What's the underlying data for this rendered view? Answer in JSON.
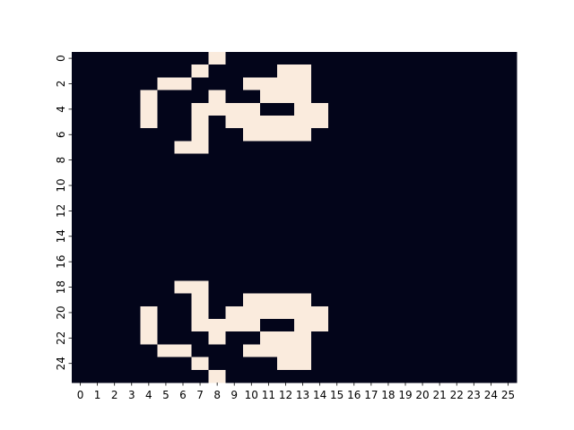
{
  "chart_data": {
    "type": "heatmap",
    "title": "",
    "xlabel": "",
    "ylabel": "",
    "x_tick_labels": [
      "0",
      "1",
      "2",
      "3",
      "4",
      "5",
      "6",
      "7",
      "8",
      "9",
      "10",
      "11",
      "12",
      "13",
      "14",
      "15",
      "16",
      "17",
      "18",
      "19",
      "20",
      "21",
      "22",
      "23",
      "24",
      "25"
    ],
    "y_tick_labels": [
      "0",
      "2",
      "4",
      "6",
      "8",
      "10",
      "12",
      "14",
      "16",
      "18",
      "20",
      "22",
      "24"
    ],
    "y_tick_values": [
      0,
      2,
      4,
      6,
      8,
      10,
      12,
      14,
      16,
      18,
      20,
      22,
      24
    ],
    "colorbar": false,
    "colors": {
      "off": "#03051a",
      "on": "#faebdd"
    },
    "values": [
      [
        0,
        0,
        0,
        0,
        0,
        0,
        0,
        0,
        1,
        0,
        0,
        0,
        0,
        0,
        0,
        0,
        0,
        0,
        0,
        0,
        0,
        0,
        0,
        0,
        0,
        0
      ],
      [
        0,
        0,
        0,
        0,
        0,
        0,
        0,
        1,
        0,
        0,
        0,
        0,
        1,
        1,
        0,
        0,
        0,
        0,
        0,
        0,
        0,
        0,
        0,
        0,
        0,
        0
      ],
      [
        0,
        0,
        0,
        0,
        0,
        1,
        1,
        0,
        0,
        0,
        1,
        1,
        1,
        1,
        0,
        0,
        0,
        0,
        0,
        0,
        0,
        0,
        0,
        0,
        0,
        0
      ],
      [
        0,
        0,
        0,
        0,
        1,
        0,
        0,
        0,
        1,
        0,
        0,
        1,
        1,
        1,
        0,
        0,
        0,
        0,
        0,
        0,
        0,
        0,
        0,
        0,
        0,
        0
      ],
      [
        0,
        0,
        0,
        0,
        1,
        0,
        0,
        1,
        1,
        1,
        1,
        0,
        0,
        1,
        1,
        0,
        0,
        0,
        0,
        0,
        0,
        0,
        0,
        0,
        0,
        0
      ],
      [
        0,
        0,
        0,
        0,
        1,
        0,
        0,
        1,
        0,
        1,
        1,
        1,
        1,
        1,
        1,
        0,
        0,
        0,
        0,
        0,
        0,
        0,
        0,
        0,
        0,
        0
      ],
      [
        0,
        0,
        0,
        0,
        0,
        0,
        0,
        1,
        0,
        0,
        1,
        1,
        1,
        1,
        0,
        0,
        0,
        0,
        0,
        0,
        0,
        0,
        0,
        0,
        0,
        0
      ],
      [
        0,
        0,
        0,
        0,
        0,
        0,
        1,
        1,
        0,
        0,
        0,
        0,
        0,
        0,
        0,
        0,
        0,
        0,
        0,
        0,
        0,
        0,
        0,
        0,
        0,
        0
      ],
      [
        0,
        0,
        0,
        0,
        0,
        0,
        0,
        0,
        0,
        0,
        0,
        0,
        0,
        0,
        0,
        0,
        0,
        0,
        0,
        0,
        0,
        0,
        0,
        0,
        0,
        0
      ],
      [
        0,
        0,
        0,
        0,
        0,
        0,
        0,
        0,
        0,
        0,
        0,
        0,
        0,
        0,
        0,
        0,
        0,
        0,
        0,
        0,
        0,
        0,
        0,
        0,
        0,
        0
      ],
      [
        0,
        0,
        0,
        0,
        0,
        0,
        0,
        0,
        0,
        0,
        0,
        0,
        0,
        0,
        0,
        0,
        0,
        0,
        0,
        0,
        0,
        0,
        0,
        0,
        0,
        0
      ],
      [
        0,
        0,
        0,
        0,
        0,
        0,
        0,
        0,
        0,
        0,
        0,
        0,
        0,
        0,
        0,
        0,
        0,
        0,
        0,
        0,
        0,
        0,
        0,
        0,
        0,
        0
      ],
      [
        0,
        0,
        0,
        0,
        0,
        0,
        0,
        0,
        0,
        0,
        0,
        0,
        0,
        0,
        0,
        0,
        0,
        0,
        0,
        0,
        0,
        0,
        0,
        0,
        0,
        0
      ],
      [
        0,
        0,
        0,
        0,
        0,
        0,
        0,
        0,
        0,
        0,
        0,
        0,
        0,
        0,
        0,
        0,
        0,
        0,
        0,
        0,
        0,
        0,
        0,
        0,
        0,
        0
      ],
      [
        0,
        0,
        0,
        0,
        0,
        0,
        0,
        0,
        0,
        0,
        0,
        0,
        0,
        0,
        0,
        0,
        0,
        0,
        0,
        0,
        0,
        0,
        0,
        0,
        0,
        0
      ],
      [
        0,
        0,
        0,
        0,
        0,
        0,
        0,
        0,
        0,
        0,
        0,
        0,
        0,
        0,
        0,
        0,
        0,
        0,
        0,
        0,
        0,
        0,
        0,
        0,
        0,
        0
      ],
      [
        0,
        0,
        0,
        0,
        0,
        0,
        0,
        0,
        0,
        0,
        0,
        0,
        0,
        0,
        0,
        0,
        0,
        0,
        0,
        0,
        0,
        0,
        0,
        0,
        0,
        0
      ],
      [
        0,
        0,
        0,
        0,
        0,
        0,
        0,
        0,
        0,
        0,
        0,
        0,
        0,
        0,
        0,
        0,
        0,
        0,
        0,
        0,
        0,
        0,
        0,
        0,
        0,
        0
      ],
      [
        0,
        0,
        0,
        0,
        0,
        0,
        1,
        1,
        0,
        0,
        0,
        0,
        0,
        0,
        0,
        0,
        0,
        0,
        0,
        0,
        0,
        0,
        0,
        0,
        0,
        0
      ],
      [
        0,
        0,
        0,
        0,
        0,
        0,
        0,
        1,
        0,
        0,
        1,
        1,
        1,
        1,
        0,
        0,
        0,
        0,
        0,
        0,
        0,
        0,
        0,
        0,
        0,
        0
      ],
      [
        0,
        0,
        0,
        0,
        1,
        0,
        0,
        1,
        0,
        1,
        1,
        1,
        1,
        1,
        1,
        0,
        0,
        0,
        0,
        0,
        0,
        0,
        0,
        0,
        0,
        0
      ],
      [
        0,
        0,
        0,
        0,
        1,
        0,
        0,
        1,
        1,
        1,
        1,
        0,
        0,
        1,
        1,
        0,
        0,
        0,
        0,
        0,
        0,
        0,
        0,
        0,
        0,
        0
      ],
      [
        0,
        0,
        0,
        0,
        1,
        0,
        0,
        0,
        1,
        0,
        0,
        1,
        1,
        1,
        0,
        0,
        0,
        0,
        0,
        0,
        0,
        0,
        0,
        0,
        0,
        0
      ],
      [
        0,
        0,
        0,
        0,
        0,
        1,
        1,
        0,
        0,
        0,
        1,
        1,
        1,
        1,
        0,
        0,
        0,
        0,
        0,
        0,
        0,
        0,
        0,
        0,
        0,
        0
      ],
      [
        0,
        0,
        0,
        0,
        0,
        0,
        0,
        1,
        0,
        0,
        0,
        0,
        1,
        1,
        0,
        0,
        0,
        0,
        0,
        0,
        0,
        0,
        0,
        0,
        0,
        0
      ],
      [
        0,
        0,
        0,
        0,
        0,
        0,
        0,
        0,
        1,
        0,
        0,
        0,
        0,
        0,
        0,
        0,
        0,
        0,
        0,
        0,
        0,
        0,
        0,
        0,
        0,
        0
      ]
    ]
  }
}
